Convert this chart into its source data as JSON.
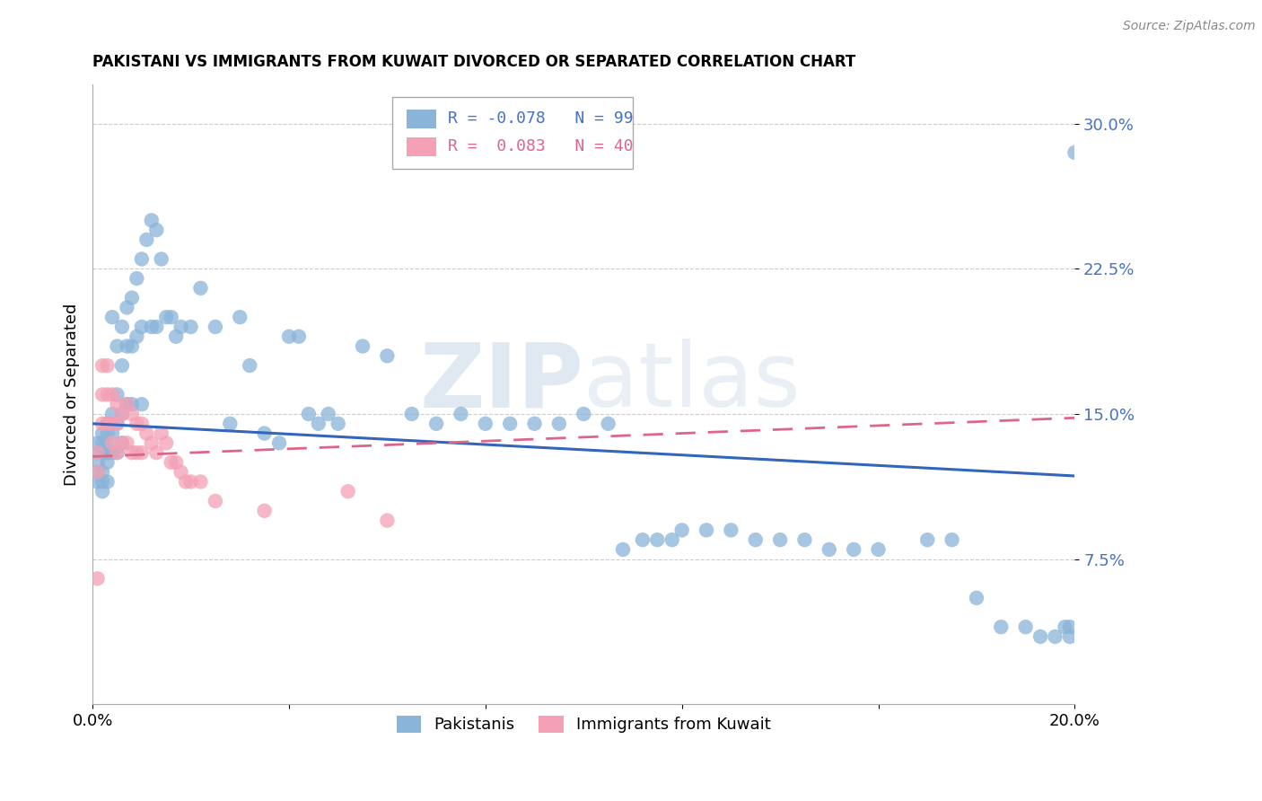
{
  "title": "PAKISTANI VS IMMIGRANTS FROM KUWAIT DIVORCED OR SEPARATED CORRELATION CHART",
  "source": "Source: ZipAtlas.com",
  "ylabel": "Divorced or Separated",
  "xlim": [
    0.0,
    0.2
  ],
  "ylim": [
    0.0,
    0.32
  ],
  "yticks": [
    0.075,
    0.15,
    0.225,
    0.3
  ],
  "ytick_labels": [
    "7.5%",
    "15.0%",
    "22.5%",
    "30.0%"
  ],
  "xticks": [
    0.0,
    0.04,
    0.08,
    0.12,
    0.16,
    0.2
  ],
  "xtick_labels": [
    "0.0%",
    "",
    "",
    "",
    "",
    "20.0%"
  ],
  "blue_R": -0.078,
  "blue_N": 99,
  "pink_R": 0.083,
  "pink_N": 40,
  "blue_color": "#8ab4d8",
  "pink_color": "#f4a0b5",
  "blue_line_color": "#3366bb",
  "pink_line_color": "#dd6688",
  "watermark_zip": "ZIP",
  "watermark_atlas": "atlas",
  "legend_label_blue": "Pakistanis",
  "legend_label_pink": "Immigrants from Kuwait",
  "blue_x": [
    0.001,
    0.001,
    0.001,
    0.001,
    0.001,
    0.002,
    0.002,
    0.002,
    0.002,
    0.002,
    0.002,
    0.003,
    0.003,
    0.003,
    0.003,
    0.003,
    0.003,
    0.004,
    0.004,
    0.004,
    0.004,
    0.005,
    0.005,
    0.005,
    0.005,
    0.006,
    0.006,
    0.006,
    0.006,
    0.007,
    0.007,
    0.007,
    0.008,
    0.008,
    0.008,
    0.009,
    0.009,
    0.01,
    0.01,
    0.01,
    0.011,
    0.012,
    0.012,
    0.013,
    0.013,
    0.014,
    0.015,
    0.016,
    0.017,
    0.018,
    0.02,
    0.022,
    0.025,
    0.028,
    0.03,
    0.032,
    0.035,
    0.038,
    0.04,
    0.042,
    0.044,
    0.046,
    0.048,
    0.05,
    0.055,
    0.06,
    0.065,
    0.07,
    0.075,
    0.08,
    0.085,
    0.09,
    0.095,
    0.1,
    0.105,
    0.108,
    0.112,
    0.115,
    0.118,
    0.12,
    0.125,
    0.13,
    0.135,
    0.14,
    0.145,
    0.15,
    0.155,
    0.16,
    0.17,
    0.175,
    0.18,
    0.185,
    0.19,
    0.193,
    0.196,
    0.198,
    0.199,
    0.199,
    0.2
  ],
  "blue_y": [
    0.135,
    0.13,
    0.125,
    0.12,
    0.115,
    0.14,
    0.135,
    0.13,
    0.12,
    0.115,
    0.11,
    0.145,
    0.14,
    0.135,
    0.13,
    0.125,
    0.115,
    0.2,
    0.15,
    0.14,
    0.13,
    0.185,
    0.16,
    0.145,
    0.13,
    0.195,
    0.175,
    0.15,
    0.135,
    0.205,
    0.185,
    0.155,
    0.21,
    0.185,
    0.155,
    0.22,
    0.19,
    0.23,
    0.195,
    0.155,
    0.24,
    0.25,
    0.195,
    0.245,
    0.195,
    0.23,
    0.2,
    0.2,
    0.19,
    0.195,
    0.195,
    0.215,
    0.195,
    0.145,
    0.2,
    0.175,
    0.14,
    0.135,
    0.19,
    0.19,
    0.15,
    0.145,
    0.15,
    0.145,
    0.185,
    0.18,
    0.15,
    0.145,
    0.15,
    0.145,
    0.145,
    0.145,
    0.145,
    0.15,
    0.145,
    0.08,
    0.085,
    0.085,
    0.085,
    0.09,
    0.09,
    0.09,
    0.085,
    0.085,
    0.085,
    0.08,
    0.08,
    0.08,
    0.085,
    0.085,
    0.055,
    0.04,
    0.04,
    0.035,
    0.035,
    0.04,
    0.04,
    0.035,
    0.285
  ],
  "pink_x": [
    0.001,
    0.001,
    0.001,
    0.002,
    0.002,
    0.002,
    0.003,
    0.003,
    0.003,
    0.004,
    0.004,
    0.004,
    0.005,
    0.005,
    0.005,
    0.006,
    0.006,
    0.007,
    0.007,
    0.008,
    0.008,
    0.009,
    0.009,
    0.01,
    0.01,
    0.011,
    0.012,
    0.013,
    0.014,
    0.015,
    0.016,
    0.017,
    0.018,
    0.019,
    0.02,
    0.022,
    0.025,
    0.035,
    0.052,
    0.06
  ],
  "pink_y": [
    0.13,
    0.12,
    0.065,
    0.175,
    0.16,
    0.145,
    0.175,
    0.16,
    0.145,
    0.16,
    0.145,
    0.135,
    0.155,
    0.145,
    0.13,
    0.15,
    0.135,
    0.155,
    0.135,
    0.15,
    0.13,
    0.145,
    0.13,
    0.145,
    0.13,
    0.14,
    0.135,
    0.13,
    0.14,
    0.135,
    0.125,
    0.125,
    0.12,
    0.115,
    0.115,
    0.115,
    0.105,
    0.1,
    0.11,
    0.095
  ],
  "blue_line_x0": 0.0,
  "blue_line_x1": 0.2,
  "blue_line_y0": 0.145,
  "blue_line_y1": 0.118,
  "pink_line_x0": 0.0,
  "pink_line_x1": 0.2,
  "pink_line_y0": 0.128,
  "pink_line_y1": 0.148
}
